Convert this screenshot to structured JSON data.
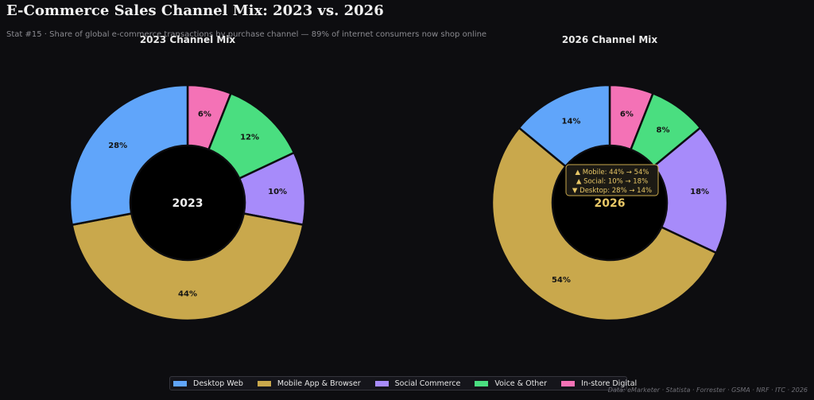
{
  "title": "E-Commerce Sales Channel Mix: 2023 vs. 2026",
  "subtitle": "Stat #15 · Share of global e-commerce transactions by purchase channel — 89% of internet consumers now shop online",
  "source": "Data: eMarketer · Statista · Forrester · GSMA · NRF · ITC · 2026",
  "colors": {
    "Desktop Web": "#60a5fa",
    "Mobile App & Browser": "#c9a84c",
    "Social Commerce": "#a78bfa",
    "Voice & Other": "#4ade80",
    "In-store Digital": "#f472b6"
  },
  "legend": [
    "Desktop Web",
    "Mobile App & Browser",
    "Social Commerce",
    "Voice & Other",
    "In-store Digital"
  ],
  "chart_data": [
    {
      "type": "pie",
      "title": "2023 Channel Mix",
      "center_label": "2023",
      "categories": [
        "In-store Digital",
        "Voice & Other",
        "Social Commerce",
        "Mobile App & Browser",
        "Desktop Web"
      ],
      "values": [
        6,
        12,
        10,
        44,
        28
      ],
      "labels": [
        "6%",
        "12%",
        "10%",
        "44%",
        "28%"
      ]
    },
    {
      "type": "pie",
      "title": "2026 Channel Mix",
      "center_label": "2026",
      "categories": [
        "In-store Digital",
        "Voice & Other",
        "Social Commerce",
        "Mobile App & Browser",
        "Desktop Web"
      ],
      "values": [
        6,
        8,
        18,
        54,
        14
      ],
      "labels": [
        "6%",
        "8%",
        "18%",
        "54%",
        "14%"
      ],
      "annotation": [
        "▲ Mobile: 44% → 54%",
        "▲ Social: 10% → 18%",
        "▼ Desktop: 28% → 14%"
      ]
    }
  ]
}
